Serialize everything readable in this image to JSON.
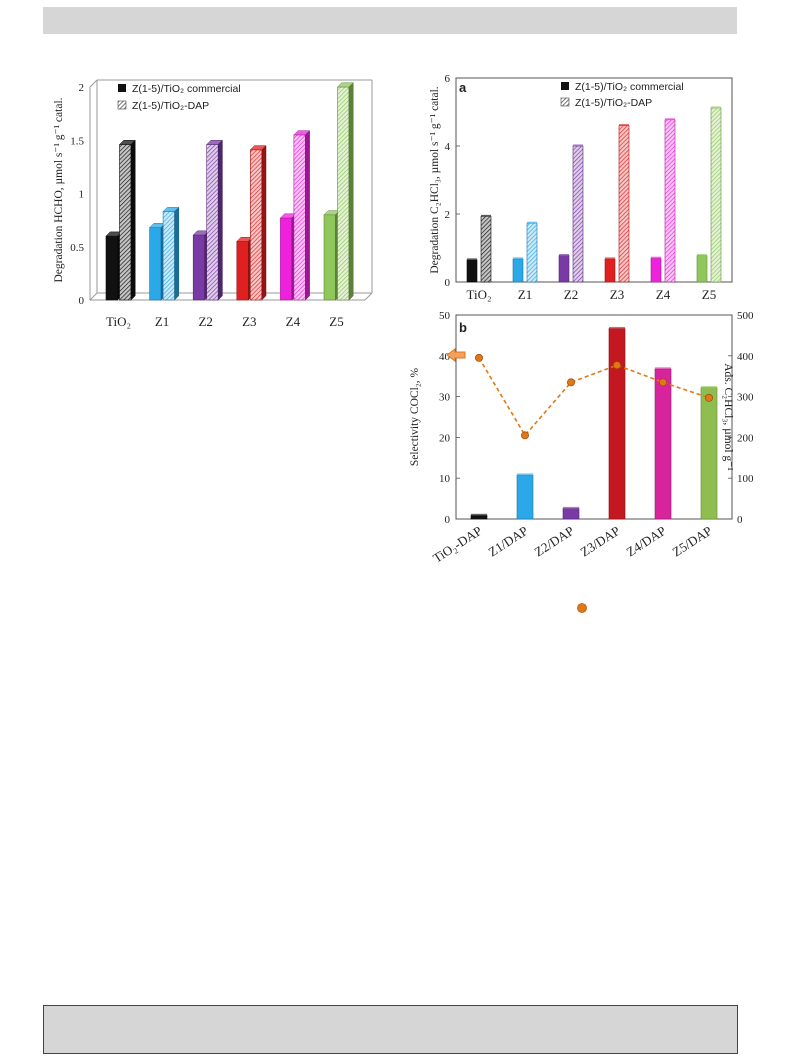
{
  "chart_data": [
    {
      "type": "bar",
      "chart_id": "hcho",
      "ylabel": "Degradation HCHO, µmol s⁻¹ g⁻¹ catal.",
      "ylim": [
        0,
        2
      ],
      "yticks": [
        "0",
        "0.5",
        "1",
        "1.5",
        "2"
      ],
      "categories": [
        "TiO₂",
        "Z1",
        "Z2",
        "Z3",
        "Z4",
        "Z5"
      ],
      "series": [
        {
          "name": "Z(1-5)/TiO₂ commercial",
          "values": [
            0.6,
            0.68,
            0.61,
            0.55,
            0.77,
            0.8
          ]
        },
        {
          "name": "Z(1-5)/TiO₂-DAP",
          "values": [
            1.46,
            0.83,
            1.46,
            1.41,
            1.55,
            2.0
          ]
        }
      ],
      "colors": [
        "#111111",
        "#2aa8e8",
        "#7a3aa6",
        "#e02020",
        "#ee22dd",
        "#8fc75a"
      ],
      "legend_position": "top-left"
    },
    {
      "type": "bar",
      "chart_id": "a",
      "panel_label": "a",
      "ylabel": "Degradation C₂HCl₃, µmol s⁻¹ g⁻¹ catal.",
      "ylim": [
        0,
        6
      ],
      "yticks": [
        "0",
        "2",
        "4",
        "6"
      ],
      "categories": [
        "TiO₂",
        "Z1",
        "Z2",
        "Z3",
        "Z4",
        "Z5"
      ],
      "series": [
        {
          "name": "Z(1-5)/TiO₂ commercial",
          "values": [
            0.65,
            0.68,
            0.78,
            0.68,
            0.7,
            0.78
          ]
        },
        {
          "name": "Z(1-5)/TiO₂-DAP",
          "values": [
            1.93,
            1.73,
            4.0,
            4.6,
            4.77,
            5.12
          ]
        }
      ],
      "colors": [
        "#111111",
        "#2aa8e8",
        "#7a3aa6",
        "#e02020",
        "#ee22dd",
        "#8fc75a"
      ],
      "legend_position": "top-right"
    },
    {
      "type": "bar",
      "chart_id": "b",
      "panel_label": "b",
      "ylabel": "Selectivity COCl₂, %",
      "y2label": "Ads. C₂HCl₃, µmol g⁻¹",
      "ylim": [
        0,
        50
      ],
      "yticks": [
        "0",
        "10",
        "20",
        "30",
        "40",
        "50"
      ],
      "y2lim": [
        0,
        500
      ],
      "y2ticks": [
        "0",
        "100",
        "200",
        "300",
        "400",
        "500"
      ],
      "categories": [
        "TiO₂-DAP",
        "Z1/DAP",
        "Z2/DAP",
        "Z3/DAP",
        "Z4/DAP",
        "Z5/DAP"
      ],
      "bar_values": [
        0.9,
        10.8,
        2.6,
        46.7,
        36.8,
        32.2
      ],
      "line_values": [
        395,
        205,
        335,
        377,
        335,
        297
      ],
      "colors": [
        "#111111",
        "#2aa8e8",
        "#7a3aa6",
        "#c41820",
        "#d8249c",
        "#8fbe50"
      ],
      "line_color": "#e07818"
    }
  ]
}
